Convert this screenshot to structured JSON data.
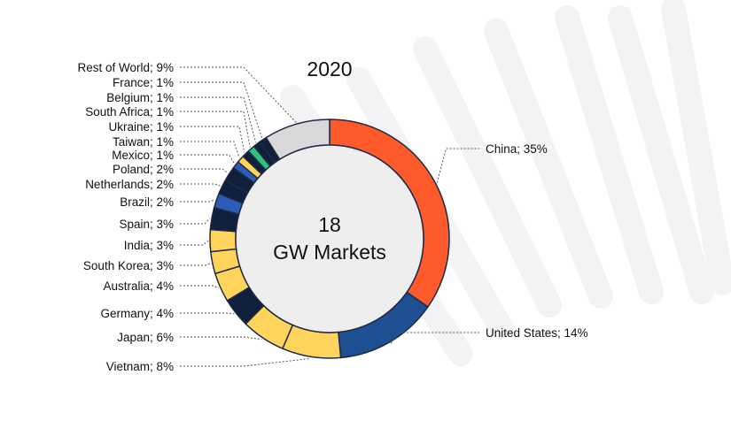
{
  "chart_data": {
    "type": "pie",
    "variant": "donut",
    "title": "2020",
    "center_text": [
      "18",
      "GW Markets"
    ],
    "slices": [
      {
        "label": "China; 35%",
        "name": "China",
        "value": 35,
        "color": "#ff5a2c",
        "side": "right"
      },
      {
        "label": "United States; 14%",
        "name": "United States",
        "value": 14,
        "color": "#1f4f93",
        "side": "right"
      },
      {
        "label": "Vietnam; 8%",
        "name": "Vietnam",
        "value": 8,
        "color": "#ffd45c",
        "side": "left"
      },
      {
        "label": "Japan; 6%",
        "name": "Japan",
        "value": 6,
        "color": "#ffd45c",
        "side": "left"
      },
      {
        "label": "Germany; 4%",
        "name": "Germany",
        "value": 4,
        "color": "#0f1f3c",
        "side": "left"
      },
      {
        "label": "Australia; 4%",
        "name": "Australia",
        "value": 4,
        "color": "#ffd45c",
        "side": "left"
      },
      {
        "label": "South Korea; 3%",
        "name": "South Korea",
        "value": 3,
        "color": "#ffd45c",
        "side": "left"
      },
      {
        "label": "India; 3%",
        "name": "India",
        "value": 3,
        "color": "#ffd45c",
        "side": "left"
      },
      {
        "label": "Spain; 3%",
        "name": "Spain",
        "value": 3,
        "color": "#0f1f3c",
        "side": "left"
      },
      {
        "label": "Brazil; 2%",
        "name": "Brazil",
        "value": 2,
        "color": "#2d5bb8",
        "side": "left"
      },
      {
        "label": "Netherlands; 2%",
        "name": "Netherlands",
        "value": 2,
        "color": "#0f1f3c",
        "side": "left"
      },
      {
        "label": "Poland; 2%",
        "name": "Poland",
        "value": 2,
        "color": "#0f1f3c",
        "side": "left"
      },
      {
        "label": "Mexico; 1%",
        "name": "Mexico",
        "value": 1,
        "color": "#2d5bb8",
        "side": "left"
      },
      {
        "label": "Taiwan; 1%",
        "name": "Taiwan",
        "value": 1,
        "color": "#ffd45c",
        "side": "left"
      },
      {
        "label": "Ukraine; 1%",
        "name": "Ukraine",
        "value": 1,
        "color": "#0f1f3c",
        "side": "left"
      },
      {
        "label": "South Africa; 1%",
        "name": "South Africa",
        "value": 1,
        "color": "#2ec27e",
        "side": "left"
      },
      {
        "label": "Belgium; 1%",
        "name": "Belgium",
        "value": 1,
        "color": "#0f1f3c",
        "side": "left"
      },
      {
        "label": "France; 1%",
        "name": "France",
        "value": 1,
        "color": "#0f1f3c",
        "side": "left"
      },
      {
        "label": "Rest of World; 9%",
        "name": "Rest of World",
        "value": 9,
        "color": "#d9d9d9",
        "side": "left"
      }
    ],
    "start_angle_deg": 0,
    "direction": "clockwise",
    "center_fill": "#eeeeee",
    "stroke_color": "#1f2a44",
    "background_ray_color": "#f3f3f5"
  }
}
